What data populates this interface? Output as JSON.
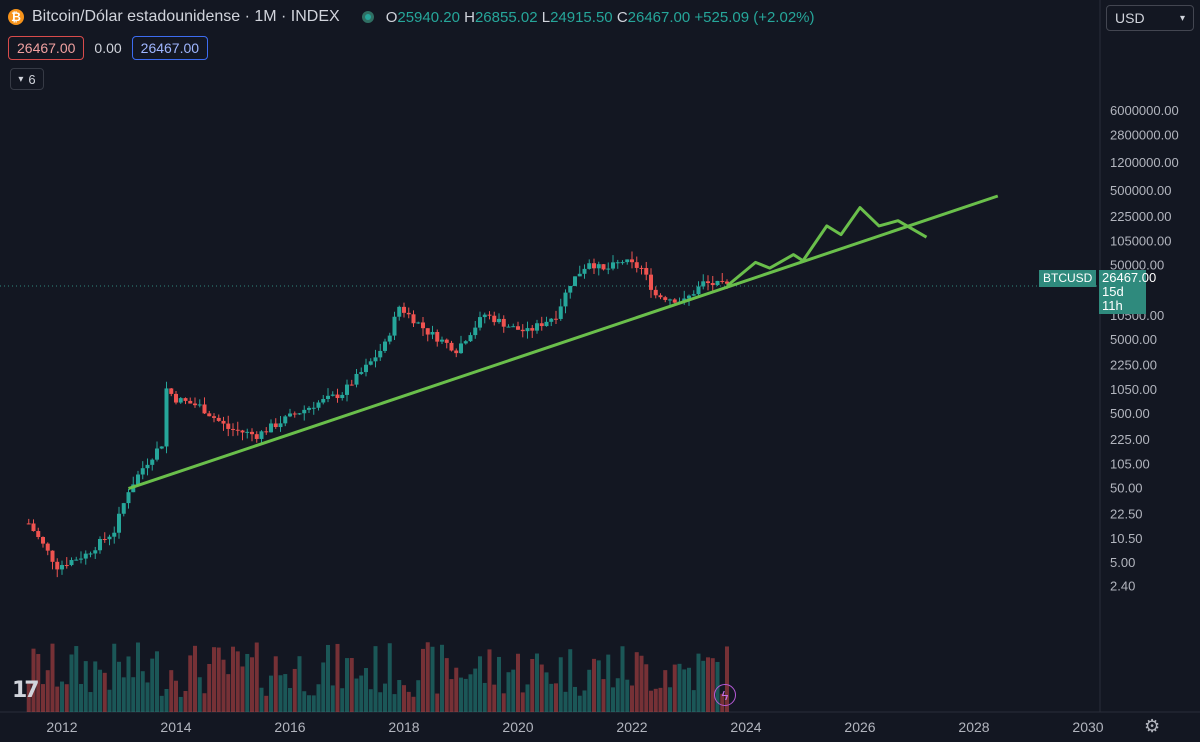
{
  "header": {
    "title": "Bitcoin/Dólar estadounidense · 1M · INDEX",
    "open_key": "O",
    "open": "25940.20",
    "high_key": "H",
    "high": "26855.02",
    "low_key": "L",
    "low": "24915.50",
    "close_key": "C",
    "close": "26467.00",
    "change": "+525.09 (+2.02%)"
  },
  "toolbar": {
    "price_red": "26467.00",
    "spread": "0.00",
    "price_blue": "26467.00",
    "indicators_count": "6",
    "currency": "USD"
  },
  "price_tag": {
    "symbol": "BTCUSD",
    "price": "26467.00",
    "countdown": "15d 11h"
  },
  "icons": [
    "bitcoin-logo",
    "status-dot",
    "chevron-down-icon",
    "tradingview-logo",
    "flash-icon",
    "gear-icon"
  ],
  "colors": {
    "up": "#26a69a",
    "down": "#ef5350",
    "trendline": "#6abf4b",
    "background": "#131722"
  },
  "chart_data": {
    "type": "candlestick",
    "timeframe": "1M",
    "y_scale": "log",
    "x_ticks": [
      "2012",
      "2014",
      "2016",
      "2018",
      "2020",
      "2022",
      "2024",
      "2026",
      "2028",
      "2030"
    ],
    "y_ticks": [
      "6000000.00",
      "2800000.00",
      "1200000.00",
      "500000.00",
      "225000.00",
      "105000.00",
      "50000.00",
      "10500.00",
      "5000.00",
      "2250.00",
      "1050.00",
      "500.00",
      "225.00",
      "105.00",
      "50.00",
      "22.50",
      "10.50",
      "5.00",
      "2.40"
    ],
    "close_series": [
      {
        "t": "2011-06",
        "v": 17
      },
      {
        "t": "2011-12",
        "v": 4.5
      },
      {
        "t": "2012-06",
        "v": 6.5
      },
      {
        "t": "2012-12",
        "v": 13.5
      },
      {
        "t": "2013-03",
        "v": 48
      },
      {
        "t": "2013-06",
        "v": 95
      },
      {
        "t": "2013-10",
        "v": 200
      },
      {
        "t": "2013-11",
        "v": 1100
      },
      {
        "t": "2014-01",
        "v": 800
      },
      {
        "t": "2014-06",
        "v": 640
      },
      {
        "t": "2014-12",
        "v": 320
      },
      {
        "t": "2015-06",
        "v": 260
      },
      {
        "t": "2015-12",
        "v": 430
      },
      {
        "t": "2016-06",
        "v": 670
      },
      {
        "t": "2016-12",
        "v": 960
      },
      {
        "t": "2017-06",
        "v": 2500
      },
      {
        "t": "2017-09",
        "v": 4300
      },
      {
        "t": "2017-12",
        "v": 14000
      },
      {
        "t": "2018-06",
        "v": 6400
      },
      {
        "t": "2018-12",
        "v": 3700
      },
      {
        "t": "2019-06",
        "v": 11000
      },
      {
        "t": "2019-12",
        "v": 7200
      },
      {
        "t": "2020-03",
        "v": 6400
      },
      {
        "t": "2020-09",
        "v": 10800
      },
      {
        "t": "2020-12",
        "v": 29000
      },
      {
        "t": "2021-04",
        "v": 57000
      },
      {
        "t": "2021-07",
        "v": 42000
      },
      {
        "t": "2021-11",
        "v": 57000
      },
      {
        "t": "2022-03",
        "v": 45500
      },
      {
        "t": "2022-06",
        "v": 20000
      },
      {
        "t": "2022-12",
        "v": 16500
      },
      {
        "t": "2023-04",
        "v": 29000
      },
      {
        "t": "2023-09",
        "v": 26467
      }
    ],
    "annotations": [
      {
        "type": "trendline",
        "points": [
          {
            "t": "2013-03",
            "v": 50
          },
          {
            "t": "2028-06",
            "v": 430000
          }
        ]
      },
      {
        "type": "projection",
        "points": [
          {
            "t": "2023-09",
            "v": 26467
          },
          {
            "t": "2024-03",
            "v": 55000
          },
          {
            "t": "2024-06",
            "v": 46000
          },
          {
            "t": "2024-11",
            "v": 70000
          },
          {
            "t": "2025-01",
            "v": 58000
          },
          {
            "t": "2025-06",
            "v": 170000
          },
          {
            "t": "2025-09",
            "v": 130000
          },
          {
            "t": "2026-01",
            "v": 300000
          },
          {
            "t": "2026-05",
            "v": 170000
          },
          {
            "t": "2026-09",
            "v": 200000
          },
          {
            "t": "2027-03",
            "v": 120000
          }
        ]
      }
    ]
  }
}
